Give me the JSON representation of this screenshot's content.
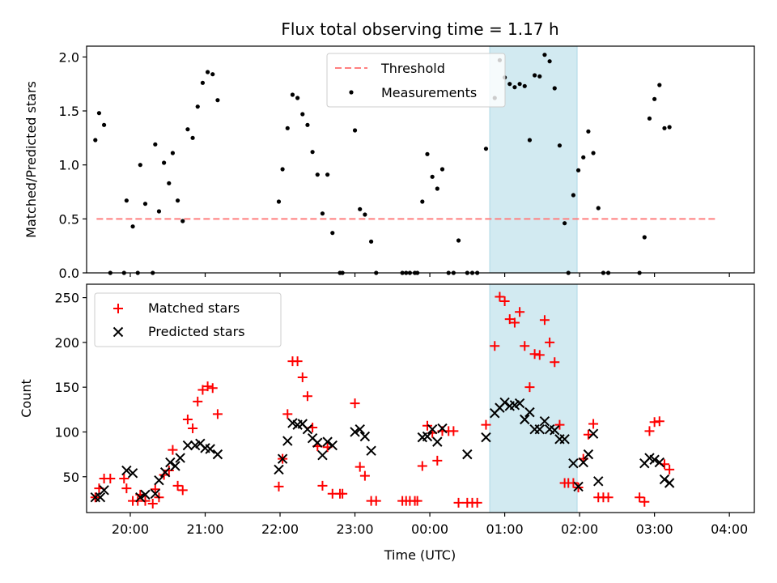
{
  "chart_data": [
    {
      "type": "scatter",
      "title": "Flux total observing time = 1.17 h",
      "xlabel": "",
      "ylabel": "Matched/Predicted stars",
      "ylim": [
        0,
        2.1
      ],
      "yticks": [
        "0.0",
        "0.5",
        "1.0",
        "1.5",
        "2.0"
      ],
      "xlim": [
        "19:25",
        "04:20"
      ],
      "x_tick_values": [
        "20:00",
        "21:00",
        "22:00",
        "23:00",
        "00:00",
        "01:00",
        "02:00",
        "03:00",
        "04:00"
      ],
      "highlight_span": [
        "00:48",
        "01:58"
      ],
      "highlight_color": "#add8e6",
      "legend_position": "top-center",
      "threshold": {
        "name": "Threshold",
        "value": 0.5,
        "x_range": [
          "19:33",
          "03:51"
        ],
        "color": "#ff7f7f",
        "style": "dashed"
      },
      "series": [
        {
          "name": "Measurements",
          "color": "#000000",
          "marker": "dot",
          "points": [
            [
              "19:32",
              1.23
            ],
            [
              "19:35",
              1.48
            ],
            [
              "19:39",
              1.37
            ],
            [
              "19:44",
              0.0
            ],
            [
              "19:55",
              0.0
            ],
            [
              "19:57",
              0.67
            ],
            [
              "20:02",
              0.43
            ],
            [
              "20:06",
              0.0
            ],
            [
              "20:08",
              1.0
            ],
            [
              "20:12",
              0.64
            ],
            [
              "20:18",
              0.0
            ],
            [
              "20:20",
              1.19
            ],
            [
              "20:23",
              0.57
            ],
            [
              "20:27",
              1.02
            ],
            [
              "20:31",
              0.83
            ],
            [
              "20:34",
              1.11
            ],
            [
              "20:38",
              0.67
            ],
            [
              "20:42",
              0.48
            ],
            [
              "20:46",
              1.33
            ],
            [
              "20:50",
              1.25
            ],
            [
              "20:54",
              1.54
            ],
            [
              "20:58",
              1.76
            ],
            [
              "21:02",
              1.86
            ],
            [
              "21:06",
              1.84
            ],
            [
              "21:10",
              1.6
            ],
            [
              "21:59",
              0.66
            ],
            [
              "22:02",
              0.96
            ],
            [
              "22:06",
              1.34
            ],
            [
              "22:10",
              1.65
            ],
            [
              "22:14",
              1.62
            ],
            [
              "22:18",
              1.47
            ],
            [
              "22:22",
              1.37
            ],
            [
              "22:26",
              1.12
            ],
            [
              "22:30",
              0.91
            ],
            [
              "22:34",
              0.55
            ],
            [
              "22:38",
              0.91
            ],
            [
              "22:42",
              0.37
            ],
            [
              "22:48",
              0.0
            ],
            [
              "22:50",
              0.0
            ],
            [
              "23:00",
              1.32
            ],
            [
              "23:04",
              0.59
            ],
            [
              "23:08",
              0.54
            ],
            [
              "23:13",
              0.29
            ],
            [
              "23:17",
              0.0
            ],
            [
              "23:38",
              0.0
            ],
            [
              "23:41",
              0.0
            ],
            [
              "23:44",
              0.0
            ],
            [
              "23:48",
              0.0
            ],
            [
              "23:50",
              0.0
            ],
            [
              "23:54",
              0.66
            ],
            [
              "23:58",
              1.1
            ],
            [
              "00:02",
              0.89
            ],
            [
              "00:06",
              0.78
            ],
            [
              "00:10",
              0.96
            ],
            [
              "00:15",
              0.0
            ],
            [
              "00:19",
              0.0
            ],
            [
              "00:23",
              0.3
            ],
            [
              "00:30",
              0.0
            ],
            [
              "00:34",
              0.0
            ],
            [
              "00:38",
              0.0
            ],
            [
              "00:45",
              1.15
            ],
            [
              "00:52",
              1.62
            ],
            [
              "00:56",
              1.97
            ],
            [
              "01:00",
              1.81
            ],
            [
              "01:04",
              1.75
            ],
            [
              "01:08",
              1.72
            ],
            [
              "01:12",
              1.75
            ],
            [
              "01:16",
              1.73
            ],
            [
              "01:20",
              1.23
            ],
            [
              "01:24",
              1.83
            ],
            [
              "01:28",
              1.82
            ],
            [
              "01:32",
              2.02
            ],
            [
              "01:36",
              1.96
            ],
            [
              "01:40",
              1.71
            ],
            [
              "01:44",
              1.18
            ],
            [
              "01:48",
              0.46
            ],
            [
              "01:51",
              0.0
            ],
            [
              "01:55",
              0.72
            ],
            [
              "01:59",
              0.95
            ],
            [
              "02:03",
              1.07
            ],
            [
              "02:07",
              1.31
            ],
            [
              "02:11",
              1.11
            ],
            [
              "02:15",
              0.6
            ],
            [
              "02:19",
              0.0
            ],
            [
              "02:23",
              0.0
            ],
            [
              "02:48",
              0.0
            ],
            [
              "02:52",
              0.33
            ],
            [
              "02:56",
              1.43
            ],
            [
              "03:00",
              1.61
            ],
            [
              "03:04",
              1.74
            ],
            [
              "03:08",
              1.34
            ],
            [
              "03:12",
              1.35
            ]
          ]
        }
      ]
    },
    {
      "type": "scatter",
      "title": "",
      "xlabel": "Time (UTC)",
      "ylabel": "Count",
      "ylim": [
        10,
        265
      ],
      "yticks": [
        "50",
        "100",
        "150",
        "200",
        "250"
      ],
      "xlim": [
        "19:25",
        "04:20"
      ],
      "x_tick_values": [
        "20:00",
        "21:00",
        "22:00",
        "23:00",
        "00:00",
        "01:00",
        "02:00",
        "03:00",
        "04:00"
      ],
      "highlight_span": [
        "00:48",
        "01:58"
      ],
      "highlight_color": "#add8e6",
      "legend_position": "top-left",
      "series": [
        {
          "name": "Matched stars",
          "color": "#ff0000",
          "marker": "plus",
          "points": [
            [
              "19:32",
              27
            ],
            [
              "19:35",
              37
            ],
            [
              "19:39",
              48
            ],
            [
              "19:44",
              48
            ],
            [
              "19:55",
              48
            ],
            [
              "19:57",
              37
            ],
            [
              "20:02",
              23
            ],
            [
              "20:06",
              23
            ],
            [
              "20:08",
              30
            ],
            [
              "20:12",
              23
            ],
            [
              "20:18",
              20
            ],
            [
              "20:20",
              36
            ],
            [
              "20:23",
              27
            ],
            [
              "20:27",
              52
            ],
            [
              "20:31",
              57
            ],
            [
              "20:34",
              80
            ],
            [
              "20:38",
              40
            ],
            [
              "20:42",
              35
            ],
            [
              "20:46",
              114
            ],
            [
              "20:50",
              104
            ],
            [
              "20:54",
              134
            ],
            [
              "20:58",
              147
            ],
            [
              "21:02",
              151
            ],
            [
              "21:06",
              149
            ],
            [
              "21:10",
              120
            ],
            [
              "21:59",
              39
            ],
            [
              "22:02",
              70
            ],
            [
              "22:06",
              120
            ],
            [
              "22:10",
              179
            ],
            [
              "22:14",
              179
            ],
            [
              "22:18",
              161
            ],
            [
              "22:22",
              140
            ],
            [
              "22:26",
              105
            ],
            [
              "22:30",
              84
            ],
            [
              "22:34",
              40
            ],
            [
              "22:38",
              83
            ],
            [
              "22:42",
              31
            ],
            [
              "22:48",
              31
            ],
            [
              "22:50",
              31
            ],
            [
              "23:00",
              132
            ],
            [
              "23:04",
              61
            ],
            [
              "23:08",
              51
            ],
            [
              "23:13",
              23
            ],
            [
              "23:17",
              23
            ],
            [
              "23:38",
              23
            ],
            [
              "23:41",
              23
            ],
            [
              "23:44",
              23
            ],
            [
              "23:48",
              23
            ],
            [
              "23:50",
              23
            ],
            [
              "23:54",
              62
            ],
            [
              "23:58",
              107
            ],
            [
              "00:02",
              99
            ],
            [
              "00:06",
              68
            ],
            [
              "00:10",
              101
            ],
            [
              "00:15",
              101
            ],
            [
              "00:19",
              101
            ],
            [
              "00:23",
              21
            ],
            [
              "00:30",
              21
            ],
            [
              "00:34",
              21
            ],
            [
              "00:38",
              21
            ],
            [
              "00:45",
              108
            ],
            [
              "00:52",
              196
            ],
            [
              "00:56",
              251
            ],
            [
              "01:00",
              246
            ],
            [
              "01:04",
              226
            ],
            [
              "01:08",
              222
            ],
            [
              "01:12",
              234
            ],
            [
              "01:16",
              196
            ],
            [
              "01:20",
              150
            ],
            [
              "01:24",
              187
            ],
            [
              "01:28",
              186
            ],
            [
              "01:32",
              225
            ],
            [
              "01:36",
              200
            ],
            [
              "01:40",
              178
            ],
            [
              "01:44",
              108
            ],
            [
              "01:48",
              43
            ],
            [
              "01:51",
              43
            ],
            [
              "01:55",
              43
            ],
            [
              "01:59",
              38
            ],
            [
              "02:03",
              70
            ],
            [
              "02:07",
              97
            ],
            [
              "02:11",
              109
            ],
            [
              "02:15",
              27
            ],
            [
              "02:19",
              27
            ],
            [
              "02:23",
              27
            ],
            [
              "02:48",
              27
            ],
            [
              "02:52",
              22
            ],
            [
              "02:56",
              101
            ],
            [
              "03:00",
              111
            ],
            [
              "03:04",
              112
            ],
            [
              "03:08",
              64
            ],
            [
              "03:12",
              58
            ]
          ]
        },
        {
          "name": "Predicted stars",
          "color": "#000000",
          "marker": "x",
          "points": [
            [
              "19:32",
              27
            ],
            [
              "19:36",
              27
            ],
            [
              "19:39",
              35
            ],
            [
              "19:57",
              57
            ],
            [
              "20:02",
              54
            ],
            [
              "20:08",
              27
            ],
            [
              "20:12",
              30
            ],
            [
              "20:20",
              31
            ],
            [
              "20:23",
              46
            ],
            [
              "20:28",
              55
            ],
            [
              "20:32",
              66
            ],
            [
              "20:36",
              62
            ],
            [
              "20:40",
              71
            ],
            [
              "20:46",
              85
            ],
            [
              "20:52",
              85
            ],
            [
              "20:56",
              87
            ],
            [
              "21:00",
              82
            ],
            [
              "21:04",
              81
            ],
            [
              "21:10",
              75
            ],
            [
              "21:59",
              58
            ],
            [
              "22:02",
              70
            ],
            [
              "22:06",
              90
            ],
            [
              "22:10",
              110
            ],
            [
              "22:14",
              108
            ],
            [
              "22:18",
              109
            ],
            [
              "22:22",
              103
            ],
            [
              "22:26",
              93
            ],
            [
              "22:30",
              88
            ],
            [
              "22:34",
              74
            ],
            [
              "22:38",
              89
            ],
            [
              "22:42",
              85
            ],
            [
              "23:00",
              100
            ],
            [
              "23:04",
              103
            ],
            [
              "23:08",
              95
            ],
            [
              "23:13",
              79
            ],
            [
              "23:54",
              94
            ],
            [
              "23:58",
              95
            ],
            [
              "00:02",
              103
            ],
            [
              "00:06",
              89
            ],
            [
              "00:10",
              104
            ],
            [
              "00:30",
              75
            ],
            [
              "00:45",
              94
            ],
            [
              "00:52",
              121
            ],
            [
              "00:56",
              127
            ],
            [
              "01:00",
              133
            ],
            [
              "01:04",
              129
            ],
            [
              "01:08",
              130
            ],
            [
              "01:12",
              132
            ],
            [
              "01:16",
              114
            ],
            [
              "01:20",
              122
            ],
            [
              "01:24",
              103
            ],
            [
              "01:28",
              103
            ],
            [
              "01:32",
              112
            ],
            [
              "01:36",
              103
            ],
            [
              "01:40",
              102
            ],
            [
              "01:44",
              92
            ],
            [
              "01:48",
              92
            ],
            [
              "01:55",
              65
            ],
            [
              "01:59",
              39
            ],
            [
              "02:03",
              66
            ],
            [
              "02:07",
              75
            ],
            [
              "02:11",
              98
            ],
            [
              "02:15",
              45
            ],
            [
              "02:52",
              65
            ],
            [
              "02:56",
              71
            ],
            [
              "03:00",
              69
            ],
            [
              "03:04",
              66
            ],
            [
              "03:08",
              47
            ],
            [
              "03:12",
              43
            ]
          ]
        }
      ]
    }
  ]
}
